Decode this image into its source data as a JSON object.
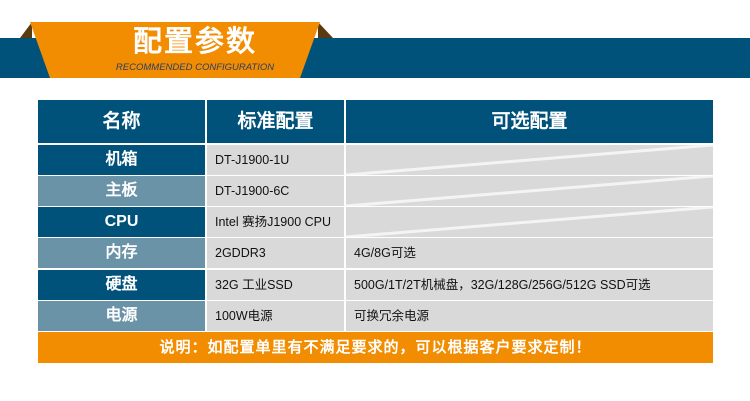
{
  "banner": {
    "title": "配置参数",
    "subtitle": "RECOMMENDED CONFIGURATION"
  },
  "colors": {
    "blue": "#01527b",
    "light_blue": "#6b93a8",
    "orange": "#f28c00",
    "cell_gray": "#d9d9d9"
  },
  "table": {
    "headers": [
      "名称",
      "标准配置",
      "可选配置"
    ],
    "rows": [
      {
        "name": "机箱",
        "standard": "DT-J1900-1U",
        "optional": ""
      },
      {
        "name": "主板",
        "standard": "DT-J1900-6C",
        "optional": ""
      },
      {
        "name": "CPU",
        "standard": "Intel 赛扬J1900 CPU",
        "optional": ""
      },
      {
        "name": "内存",
        "standard": "2GDDR3",
        "optional": "4G/8G可选"
      },
      {
        "name": "硬盘",
        "standard": "32G 工业SSD",
        "optional": "500G/1T/2T机械盘，32G/128G/256G/512G SSD可选"
      },
      {
        "name": "电源",
        "standard": "100W电源",
        "optional": "可换冗余电源"
      }
    ]
  },
  "footer": {
    "note": "说明：如配置单里有不满足要求的，可以根据客户要求定制！"
  }
}
